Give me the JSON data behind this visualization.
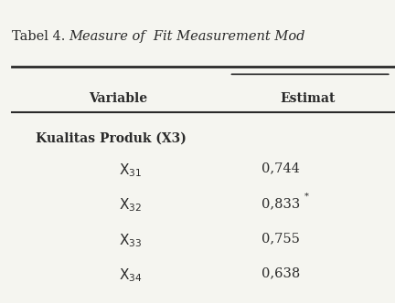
{
  "title_normal": "Tabel 4. ",
  "title_italic": "Measure of  Fit Measurement Mod",
  "col1_header": "Variable",
  "col2_header": "Estimat",
  "group_label": "Kualitas Produk (X3)",
  "rows": [
    {
      "var": "X",
      "sub": "31",
      "estimate": "0,744",
      "superscript": ""
    },
    {
      "var": "X",
      "sub": "32",
      "estimate": "0,833",
      "superscript": "*"
    },
    {
      "var": "X",
      "sub": "33",
      "estimate": "0,755",
      "superscript": ""
    },
    {
      "var": "X",
      "sub": "34",
      "estimate": "0,638",
      "superscript": ""
    }
  ],
  "bg_color": "#f5f5f0",
  "text_color": "#2a2a2a",
  "line_color": "#2a2a2a",
  "fig_width": 4.32,
  "fig_height": 3.32,
  "dpi": 100
}
